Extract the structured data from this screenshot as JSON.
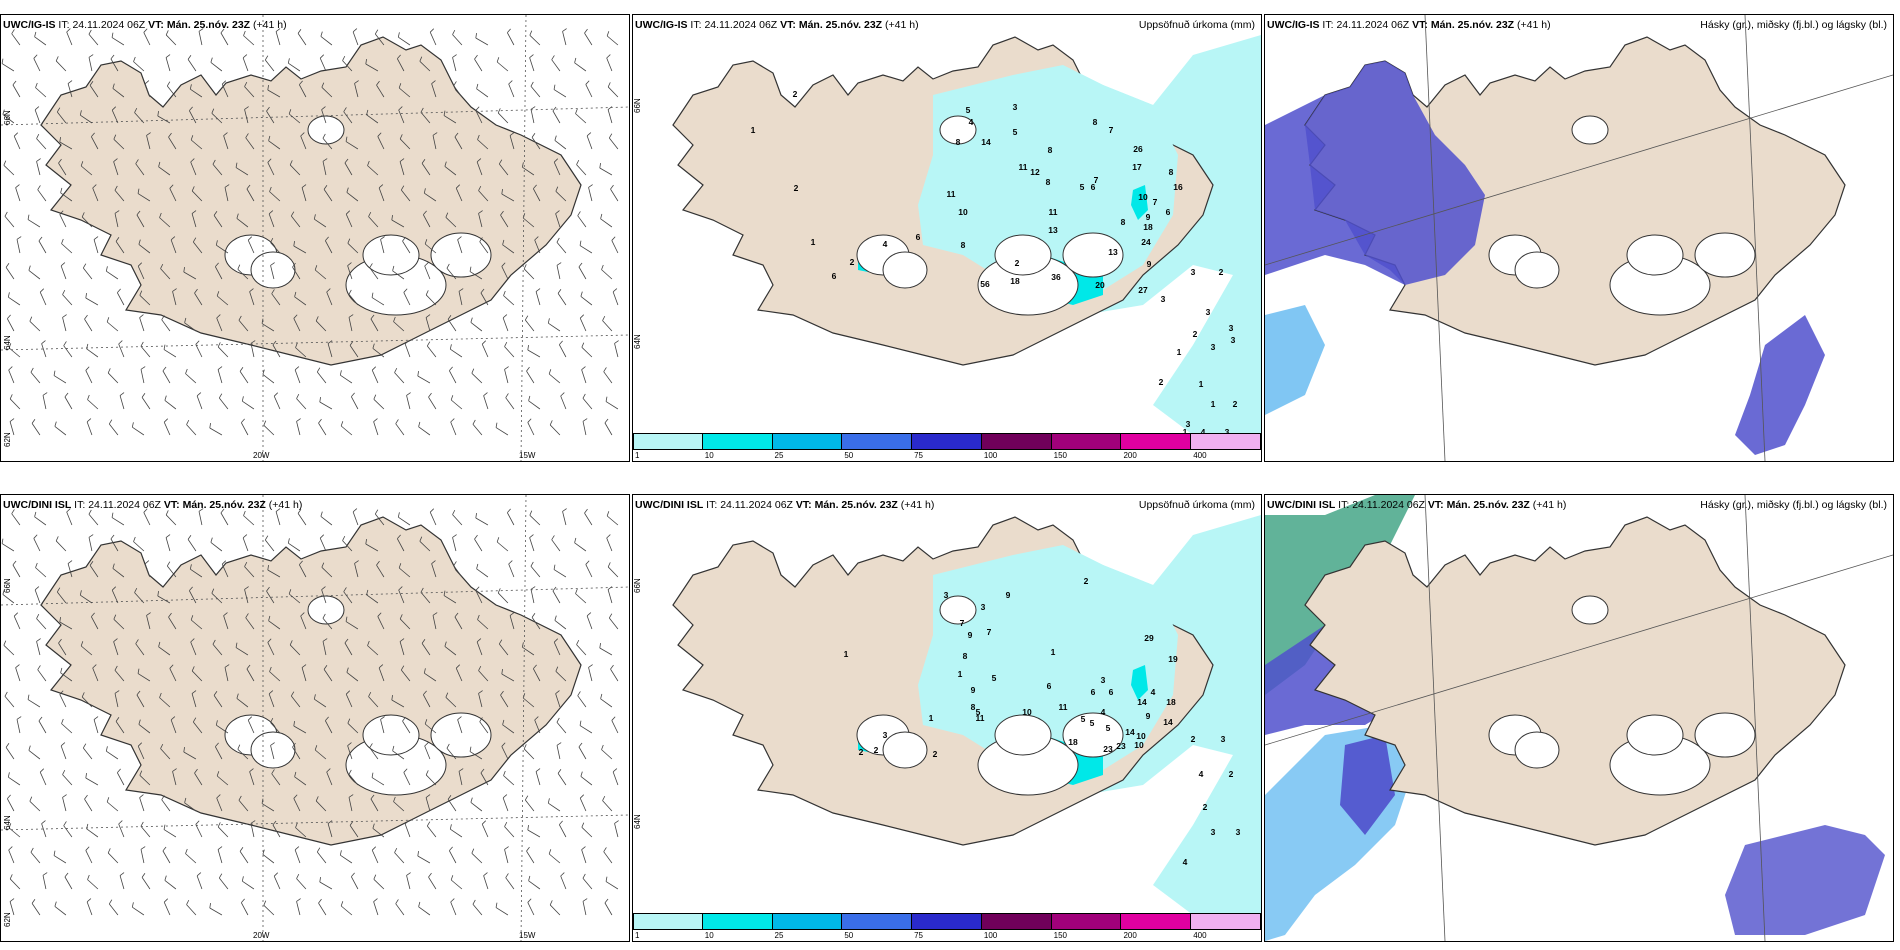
{
  "colors": {
    "land": "#eadccc",
    "coast": "#333333",
    "precip": [
      "#b8f6f6",
      "#00e8e8",
      "#00b8e8",
      "#3a6ee8",
      "#2a2acc",
      "#70005a",
      "#a0007a",
      "#e000a0",
      "#f0b0f0"
    ],
    "cloud_high": "#3aa080",
    "cloud_mid": "#5050cc",
    "cloud_low": "#60b8f0"
  },
  "rows": [
    {
      "model": "UWC/IG-IS",
      "it_label": "IT:",
      "it_value": "24.11.2024 06Z",
      "vt_label": "VT:",
      "vt_value": "Mán. 25.nóv. 23Z",
      "lead": "(+41 h)"
    },
    {
      "model": "UWC/DINI ISL",
      "it_label": "IT:",
      "it_value": "24.11.2024 06Z",
      "vt_label": "VT:",
      "vt_value": "Mán. 25.nóv. 23Z",
      "lead": "(+41 h)"
    }
  ],
  "titles": {
    "precip": "Uppsöfnuð úrkoma (mm)",
    "cloud": "Hásky (gr.), miðsky (fj.bl.) og lágsky (bl.)"
  },
  "axis": {
    "lat_labels": [
      "66N",
      "64N",
      "62N"
    ],
    "lon_labels": [
      "20W",
      "15W"
    ]
  },
  "colorbar_labels": [
    "1",
    "10",
    "25",
    "50",
    "75",
    "100",
    "150",
    "200",
    "400"
  ],
  "precip_labels": {
    "top": [
      "2",
      "1",
      "2",
      "1",
      "4",
      "6",
      "2",
      "6",
      "8",
      "5",
      "8",
      "14",
      "4",
      "3",
      "5",
      "11",
      "12",
      "8",
      "8",
      "7",
      "7",
      "5",
      "26",
      "17",
      "7",
      "9",
      "8",
      "6",
      "16",
      "18",
      "24",
      "10",
      "8",
      "13",
      "11",
      "8",
      "6",
      "2",
      "10",
      "11",
      "56",
      "18",
      "36",
      "20",
      "27",
      "13",
      "9",
      "3",
      "3",
      "2",
      "3",
      "2",
      "3",
      "3",
      "3",
      "1",
      "1",
      "2",
      "1",
      "2",
      "3",
      "3",
      "4",
      "3",
      "1"
    ],
    "bottom": [
      "1",
      "3",
      "9",
      "2",
      "7",
      "9",
      "3",
      "8",
      "9",
      "5",
      "7",
      "29",
      "5",
      "11",
      "6",
      "6",
      "14",
      "19",
      "4",
      "10",
      "8",
      "11",
      "5",
      "5",
      "9",
      "18",
      "14",
      "10",
      "5",
      "18",
      "23",
      "23",
      "14",
      "10",
      "3",
      "2",
      "2",
      "2",
      "1",
      "1",
      "1",
      "3",
      "6",
      "4",
      "2",
      "3",
      "2",
      "4",
      "2",
      "3",
      "3",
      "4"
    ]
  }
}
